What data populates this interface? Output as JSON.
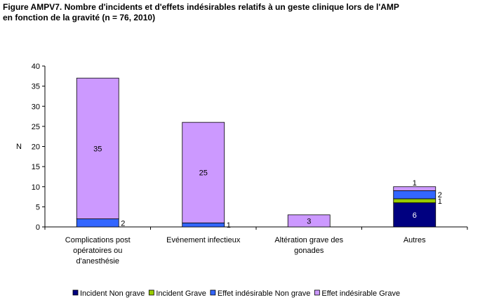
{
  "title_lines": [
    "Figure AMPV7. Nombre d'incidents et d'effets indésirables relatifs à un geste clinique lors de l'AMP",
    "en fonction de la gravité (n = 76, 2010)"
  ],
  "chart_data": {
    "type": "bar",
    "stacked": true,
    "title": "Figure AMPV7. Nombre d'incidents et d'effets indésirables relatifs à un geste clinique lors de l'AMP en fonction de la gravité (n = 76, 2010)",
    "ylabel": "N",
    "xlabel": "",
    "ylim": [
      0,
      40
    ],
    "yticks": [
      0,
      5,
      10,
      15,
      20,
      25,
      30,
      35,
      40
    ],
    "grid": false,
    "legend_position": "bottom",
    "categories": [
      [
        "Complications post",
        "opératoires ou",
        "d'anesthésie"
      ],
      [
        "Evénement infectieux"
      ],
      [
        "Altération grave des",
        "gonades"
      ],
      [
        "Autres"
      ]
    ],
    "series": [
      {
        "name": "Incident Non grave",
        "color": "#000080",
        "values": [
          0,
          0,
          0,
          6
        ],
        "labels": [
          "",
          "",
          "",
          "6"
        ]
      },
      {
        "name": "Incident Grave",
        "color": "#99cc00",
        "values": [
          0,
          0,
          0,
          1
        ],
        "labels": [
          "",
          "",
          "",
          "1"
        ]
      },
      {
        "name": "Effet indésirable Non grave",
        "color": "#3366ff",
        "values": [
          2,
          1,
          0,
          2
        ],
        "labels": [
          "2",
          "1",
          "",
          "2"
        ]
      },
      {
        "name": "Effet indésirable Grave",
        "color": "#cc99ff",
        "values": [
          35,
          25,
          3,
          1
        ],
        "labels": [
          "35",
          "25",
          "3",
          "1"
        ]
      }
    ]
  }
}
